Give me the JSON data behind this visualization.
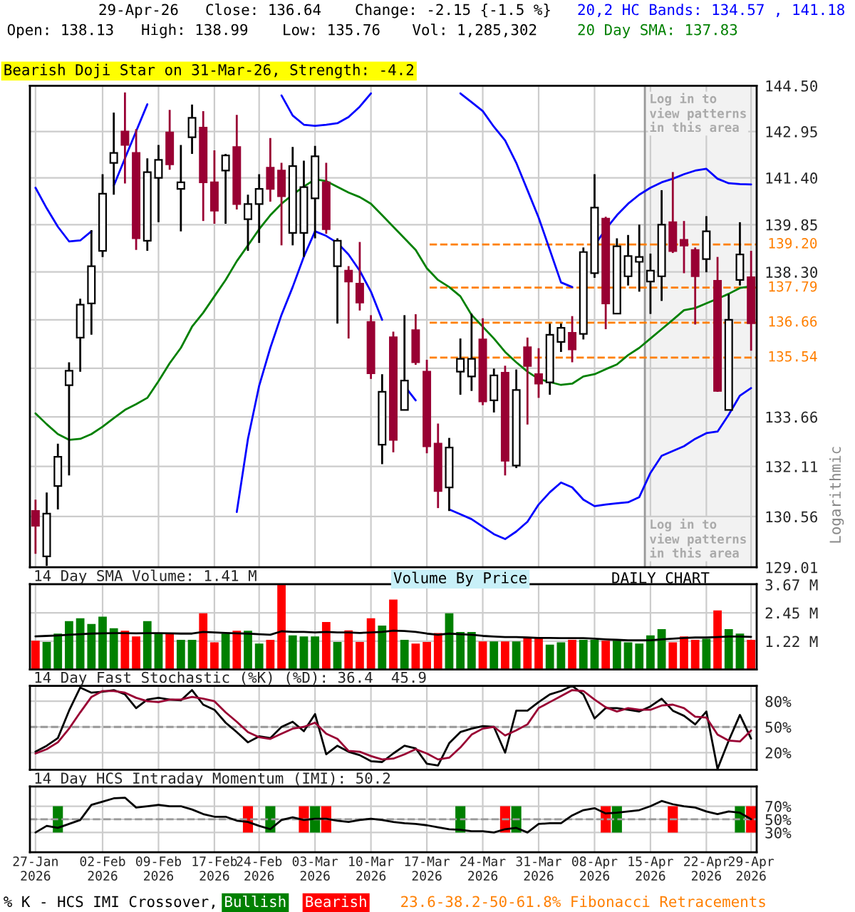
{
  "chart_data": [
    {
      "type": "candlestick",
      "categories": [
        "27-Jan\n2026",
        null,
        null,
        null,
        null,
        null,
        "02-Feb\n2026",
        null,
        null,
        null,
        null,
        "09-Feb\n2026",
        null,
        null,
        null,
        null,
        "17-Feb\n2026",
        null,
        null,
        null,
        "24-Feb\n2026",
        null,
        null,
        null,
        null,
        "03-Mar\n2026",
        null,
        null,
        null,
        null,
        "10-Mar\n2026",
        null,
        null,
        null,
        null,
        "17-Mar\n2026",
        null,
        null,
        null,
        null,
        "24-Mar\n2026",
        null,
        null,
        null,
        null,
        "31-Mar\n2026",
        null,
        null,
        null,
        null,
        "08-Apr\n2026",
        null,
        null,
        null,
        null,
        "15-Apr\n2026",
        null,
        null,
        null,
        null,
        "22-Apr\n2026",
        null,
        null,
        null,
        "29-Apr\n2026"
      ],
      "series": [
        {
          "type": "line",
          "name": "20,2 HC Bands: 134.57 , 141.18",
          "color": "#0000ff",
          "values": [
            141.07,
            140.39,
            139.78,
            139.3,
            139.33,
            139.63,
            null,
            141.14,
            142.05,
            142.96,
            143.87,
            null,
            null,
            null,
            null,
            null,
            null,
            null,
            null,
            null,
            null,
            null,
            144.17,
            143.49,
            143.18,
            143.14,
            143.18,
            143.23,
            143.44,
            143.79,
            144.24,
            null,
            null,
            null,
            null,
            null,
            null,
            null,
            144.24,
            143.94,
            143.64,
            143.11,
            142.65,
            141.9,
            140.99,
            140.08,
            139.02,
            137.96,
            137.81,
            null,
            139.17,
            139.7,
            140.16,
            140.54,
            140.84,
            141.07,
            141.25,
            141.37,
            141.52,
            141.64,
            141.7,
            141.37,
            141.22,
            141.19,
            141.18
          ]
        },
        {
          "type": "line",
          "color": "#0000ff",
          "values": [
            null,
            null,
            null,
            null,
            null,
            null,
            null,
            null,
            null,
            null,
            null,
            null,
            null,
            null,
            null,
            null,
            null,
            null,
            130.7,
            132.97,
            134.64,
            135.85,
            136.91,
            137.81,
            138.8,
            139.63,
            139.48,
            139.25,
            138.87,
            138.34,
            137.66,
            136.75,
            null,
            134.64,
            134.18,
            null,
            null,
            130.78,
            130.63,
            130.48,
            130.25,
            130.02,
            129.87,
            130.1,
            130.4,
            130.93,
            131.31,
            131.61,
            131.46,
            131.08,
            130.88,
            130.93,
            130.97,
            131.0,
            131.16,
            131.91,
            132.44,
            132.59,
            132.74,
            132.97,
            133.15,
            133.2,
            133.73,
            134.33,
            134.57
          ]
        },
        {
          "type": "line",
          "name": "20 Day SMA: 137.83",
          "color": "#008000",
          "values": [
            133.77,
            133.43,
            133.12,
            132.94,
            132.97,
            133.12,
            133.35,
            133.62,
            133.88,
            134.06,
            134.26,
            134.79,
            135.36,
            135.85,
            136.53,
            136.98,
            137.51,
            138.04,
            138.65,
            139.17,
            139.7,
            140.16,
            140.54,
            140.84,
            141.11,
            141.35,
            141.29,
            141.1,
            140.91,
            140.76,
            140.54,
            140.16,
            139.78,
            139.4,
            139.02,
            138.42,
            138.04,
            137.81,
            137.51,
            136.91,
            136.53,
            136.15,
            135.72,
            135.39,
            135.09,
            134.86,
            134.76,
            134.67,
            134.71,
            134.94,
            135.01,
            135.17,
            135.32,
            135.62,
            135.85,
            136.15,
            136.45,
            136.75,
            137.06,
            137.13,
            137.28,
            137.43,
            137.59,
            137.78,
            137.83
          ]
        },
        {
          "type": "candlestick",
          "colors": [
            "#990033",
            "#ffffff",
            "#ffffff",
            "#ffffff",
            "#ffffff",
            "#ffffff",
            "#ffffff",
            "#ffffff",
            "#990033",
            "#990033",
            "#ffffff",
            "#ffffff",
            "#990033",
            "#ffffff",
            "#ffffff",
            "#990033",
            "#990033",
            "#ffffff",
            "#990033",
            "#ffffff",
            "#ffffff",
            "#990033",
            "#990033",
            "#ffffff",
            "#ffffff",
            "#ffffff",
            "#990033",
            "#ffffff",
            "#990033",
            "#990033",
            "#990033",
            "#ffffff",
            "#990033",
            "#ffffff",
            "#990033",
            "#990033",
            "#990033",
            "#ffffff",
            "#ffffff",
            "#ffffff",
            "#990033",
            "#ffffff",
            "#990033",
            "#ffffff",
            "#990033",
            "#990033",
            "#ffffff",
            "#ffffff",
            "#990033",
            "#ffffff",
            "#ffffff",
            "#990033",
            "#ffffff",
            "#ffffff",
            "#ffffff",
            "#ffffff",
            "#ffffff",
            "#990033",
            "#990033",
            "#990033",
            "#ffffff",
            "#990033",
            "#ffffff",
            "#ffffff",
            "#990033"
          ],
          "ohlc": [
            [
              130.73,
              131.08,
              129.42,
              130.28
            ],
            [
              129.34,
              131.3,
              129.05,
              130.65
            ],
            [
              131.5,
              132.82,
              130.78,
              132.41
            ],
            [
              134.66,
              135.39,
              131.83,
              135.12
            ],
            [
              136.18,
              137.43,
              135.09,
              137.24
            ],
            [
              137.28,
              139.67,
              136.27,
              138.49
            ],
            [
              138.99,
              141.52,
              138.79,
              140.87
            ],
            [
              141.9,
              143.59,
              140.84,
              142.23
            ],
            [
              142.95,
              144.27,
              141.21,
              142.5
            ],
            [
              142.23,
              143.03,
              139.02,
              139.4
            ],
            [
              139.32,
              142.05,
              138.99,
              141.59
            ],
            [
              141.4,
              142.5,
              139.93,
              142.0
            ],
            [
              142.92,
              143.68,
              141.67,
              141.85
            ],
            [
              141.03,
              142.5,
              139.63,
              141.25
            ],
            [
              142.76,
              143.86,
              142.2,
              143.41
            ],
            [
              143.08,
              143.64,
              139.97,
              141.25
            ],
            [
              141.25,
              142.32,
              139.88,
              140.31
            ],
            [
              141.64,
              142.2,
              139.88,
              142.15
            ],
            [
              142.43,
              143.51,
              140.35,
              140.53
            ],
            [
              140.03,
              140.84,
              138.99,
              140.53
            ],
            [
              140.53,
              141.52,
              139.25,
              141.03
            ],
            [
              141.74,
              142.73,
              140.61,
              141.03
            ],
            [
              141.64,
              141.9,
              139.17,
              140.79
            ],
            [
              139.58,
              142.43,
              139.17,
              141.79
            ],
            [
              139.58,
              141.97,
              138.79,
              141.09
            ],
            [
              140.72,
              142.47,
              139.4,
              142.12
            ],
            [
              141.25,
              141.9,
              139.55,
              139.7
            ],
            [
              138.49,
              139.4,
              136.63,
              139.32
            ],
            [
              138.34,
              138.49,
              136.15,
              137.99
            ],
            [
              137.92,
              139.28,
              137.05,
              137.31
            ],
            [
              136.68,
              136.9,
              134.86,
              135.04
            ],
            [
              132.79,
              135.01,
              132.18,
              134.45
            ],
            [
              136.19,
              136.37,
              132.55,
              132.94
            ],
            [
              133.88,
              136.9,
              133.88,
              134.81
            ],
            [
              136.42,
              136.93,
              135.31,
              135.39
            ],
            [
              135.09,
              135.47,
              132.52,
              132.74
            ],
            [
              132.82,
              133.45,
              130.82,
              131.35
            ],
            [
              131.46,
              133.0,
              130.73,
              132.7
            ],
            [
              135.09,
              136.15,
              134.36,
              135.5
            ],
            [
              134.94,
              136.95,
              134.48,
              135.5
            ],
            [
              136.12,
              136.8,
              134.03,
              134.15
            ],
            [
              134.18,
              135.19,
              133.8,
              134.97
            ],
            [
              135.06,
              135.28,
              131.83,
              132.29
            ],
            [
              132.14,
              135.16,
              132.06,
              134.51
            ],
            [
              135.87,
              136.18,
              133.42,
              135.27
            ],
            [
              135.01,
              135.84,
              134.26,
              134.71
            ],
            [
              134.75,
              136.63,
              134.36,
              136.27
            ],
            [
              136.04,
              136.63,
              135.72,
              136.49
            ],
            [
              136.33,
              136.87,
              135.39,
              135.8
            ],
            [
              136.3,
              139.1,
              136.12,
              138.95
            ],
            [
              138.26,
              141.52,
              138.11,
              140.41
            ],
            [
              140.05,
              140.11,
              136.45,
              137.28
            ],
            [
              136.95,
              139.4,
              136.94,
              139.14
            ],
            [
              138.16,
              139.51,
              137.86,
              138.82
            ],
            [
              138.63,
              139.85,
              137.66,
              138.79
            ],
            [
              137.99,
              138.9,
              136.94,
              138.34
            ],
            [
              138.16,
              140.99,
              137.36,
              139.85
            ],
            [
              139.93,
              141.59,
              138.92,
              138.98
            ],
            [
              139.35,
              139.97,
              138.26,
              139.16
            ],
            [
              139.02,
              139.1,
              136.6,
              138.16
            ],
            [
              138.72,
              140.13,
              138.29,
              139.63
            ],
            [
              138.01,
              138.79,
              134.45,
              134.48
            ],
            [
              133.88,
              137.58,
              133.88,
              136.75
            ],
            [
              138.04,
              139.93,
              137.86,
              138.87
            ],
            [
              138.13,
              138.99,
              135.76,
              136.64
            ]
          ]
        }
      ],
      "ylim": [
        129.01,
        144.5
      ],
      "yticks": [
        {
          "value": 129.01,
          "label": "129.01"
        },
        {
          "value": 130.56,
          "label": "130.56"
        },
        {
          "value": 132.11,
          "label": "132.11"
        },
        {
          "value": 133.66,
          "label": "133.66"
        },
        {
          "value": 135.2,
          "label": null
        },
        {
          "value": 136.75,
          "label": null
        },
        {
          "value": 138.3,
          "label": "138.30"
        },
        {
          "value": 139.85,
          "label": "139.85"
        },
        {
          "value": 141.4,
          "label": "141.40"
        },
        {
          "value": 142.95,
          "label": "142.95"
        },
        {
          "value": 144.5,
          "label": "144.50"
        }
      ],
      "log": true,
      "grid": true,
      "tick_labels": "y",
      "legend": "top right",
      "ylabel": "Logarithmic",
      "ref_lines": [
        {
          "axis": "y",
          "value": 139.2,
          "label": "139.20",
          "color": "#ff7f00",
          "line_style": "dashed"
        },
        {
          "axis": "y",
          "value": 137.79,
          "label": "137.79",
          "color": "#ff7f00",
          "line_style": "dashed"
        },
        {
          "axis": "y",
          "value": 136.66,
          "label": "136.66",
          "color": "#ff7f00",
          "line_style": "dashed"
        },
        {
          "axis": "y",
          "value": 135.54,
          "label": "135.54",
          "color": "#ff7f00",
          "line_style": "dashed"
        }
      ],
      "bands": [
        {
          "axis": "x",
          "from": "15-Apr\n2026",
          "to": "29-Apr\n2026",
          "label": "Log in to\nview patterns\nin this area",
          "color": "#f2f2f2"
        }
      ],
      "annotations": [
        "29-Apr-26",
        "Close: 136.64",
        "Change: -2.15 {-1.5 %}",
        "Open: 138.13",
        "High: 138.99",
        "Low: 135.76",
        "Vol: 1,285,302",
        "Bearish Doji Star on 31-Mar-26, Strength: -4.2"
      ]
    },
    {
      "type": "bar",
      "title": "14 Day SMA Volume: 1.41 M",
      "categories": [
        "27-Jan\n2026",
        null,
        null,
        null,
        null,
        null,
        "02-Feb\n2026",
        null,
        null,
        null,
        null,
        "09-Feb\n2026",
        null,
        null,
        null,
        null,
        "17-Feb\n2026",
        null,
        null,
        null,
        "24-Feb\n2026",
        null,
        null,
        null,
        null,
        "03-Mar\n2026",
        null,
        null,
        null,
        null,
        "10-Mar\n2026",
        null,
        null,
        null,
        null,
        "17-Mar\n2026",
        null,
        null,
        null,
        null,
        "24-Mar\n2026",
        null,
        null,
        null,
        null,
        "31-Mar\n2026",
        null,
        null,
        null,
        null,
        "08-Apr\n2026",
        null,
        null,
        null,
        null,
        "15-Apr\n2026",
        null,
        null,
        null,
        null,
        "22-Apr\n2026",
        null,
        null,
        null,
        "29-Apr\n2026"
      ],
      "series": [
        {
          "type": "bar",
          "colors": [
            "#ff0000",
            "#008000",
            "#008000",
            "#008000",
            "#008000",
            "#008000",
            "#008000",
            "#008000",
            "#ff0000",
            "#ff0000",
            "#008000",
            "#008000",
            "#ff0000",
            "#008000",
            "#008000",
            "#ff0000",
            "#ff0000",
            "#008000",
            "#ff0000",
            "#008000",
            "#008000",
            "#ff0000",
            "#ff0000",
            "#008000",
            "#008000",
            "#008000",
            "#ff0000",
            "#008000",
            "#ff0000",
            "#ff0000",
            "#ff0000",
            "#008000",
            "#ff0000",
            "#008000",
            "#ff0000",
            "#ff0000",
            "#ff0000",
            "#008000",
            "#008000",
            "#008000",
            "#ff0000",
            "#008000",
            "#ff0000",
            "#008000",
            "#ff0000",
            "#ff0000",
            "#008000",
            "#008000",
            "#ff0000",
            "#008000",
            "#008000",
            "#ff0000",
            "#008000",
            "#008000",
            "#008000",
            "#008000",
            "#008000",
            "#ff0000",
            "#ff0000",
            "#ff0000",
            "#008000",
            "#ff0000",
            "#008000",
            "#008000",
            "#ff0000"
          ],
          "values": [
            1.24,
            1.19,
            1.55,
            2.09,
            2.21,
            1.97,
            2.28,
            1.78,
            1.67,
            1.43,
            2.09,
            1.55,
            1.59,
            1.28,
            1.28,
            2.43,
            1.17,
            1.55,
            1.67,
            1.67,
            1.12,
            1.28,
            3.66,
            1.47,
            1.43,
            1.43,
            2.05,
            1.19,
            1.69,
            1.19,
            2.21,
            1.9,
            3.02,
            1.28,
            1.12,
            1.19,
            1.57,
            2.43,
            1.62,
            1.62,
            1.21,
            1.21,
            1.21,
            1.21,
            1.4,
            1.36,
            1.07,
            1.17,
            1.28,
            1.28,
            1.28,
            1.24,
            1.24,
            1.17,
            1.12,
            1.47,
            1.74,
            1.17,
            1.43,
            1.28,
            1.33,
            2.55,
            1.74,
            1.55,
            1.28
          ]
        },
        {
          "type": "line",
          "color": "#000000",
          "values": [
            1.43,
            1.45,
            1.47,
            1.5,
            1.52,
            1.55,
            1.56,
            1.57,
            1.57,
            1.56,
            1.57,
            1.57,
            1.56,
            1.55,
            1.55,
            1.62,
            1.6,
            1.58,
            1.56,
            1.55,
            1.52,
            1.5,
            1.65,
            1.62,
            1.62,
            1.6,
            1.62,
            1.6,
            1.6,
            1.58,
            1.6,
            1.62,
            1.68,
            1.66,
            1.62,
            1.55,
            1.5,
            1.55,
            1.52,
            1.5,
            1.45,
            1.42,
            1.4,
            1.4,
            1.38,
            1.36,
            1.36,
            1.35,
            1.35,
            1.35,
            1.33,
            1.3,
            1.28,
            1.26,
            1.26,
            1.26,
            1.3,
            1.33,
            1.36,
            1.38,
            1.38,
            1.4,
            1.42,
            1.42,
            1.41
          ]
        }
      ],
      "ylim": [
        0,
        3.69
      ],
      "yticks": [
        {
          "value": 1.22,
          "label": "1.22 M"
        },
        {
          "value": 2.45,
          "label": "2.45 M"
        },
        {
          "value": 3.67,
          "label": "3.67 M"
        }
      ],
      "grid": true,
      "tick_labels": "y",
      "annotations": [
        "Volume By Price",
        "DAILY CHART"
      ]
    },
    {
      "type": "line",
      "title": "14 Day Fast Stochastic (%K) (%D): 36.4  45.9",
      "categories": [
        "27-Jan\n2026",
        null,
        null,
        null,
        null,
        null,
        "02-Feb\n2026",
        null,
        null,
        null,
        null,
        "09-Feb\n2026",
        null,
        null,
        null,
        null,
        "17-Feb\n2026",
        null,
        null,
        null,
        "24-Feb\n2026",
        null,
        null,
        null,
        null,
        "03-Mar\n2026",
        null,
        null,
        null,
        null,
        "10-Mar\n2026",
        null,
        null,
        null,
        null,
        "17-Mar\n2026",
        null,
        null,
        null,
        null,
        "24-Mar\n2026",
        null,
        null,
        null,
        null,
        "31-Mar\n2026",
        null,
        null,
        null,
        null,
        "08-Apr\n2026",
        null,
        null,
        null,
        null,
        "15-Apr\n2026",
        null,
        null,
        null,
        null,
        "22-Apr\n2026",
        null,
        null,
        null,
        "29-Apr\n2026"
      ],
      "series": [
        {
          "color": "#000000",
          "values": [
            21,
            28,
            37,
            69,
            96,
            90,
            91,
            93,
            88,
            72,
            82,
            84,
            82,
            81,
            93,
            76,
            70,
            55,
            44,
            32,
            39,
            37,
            50,
            56,
            45,
            65,
            18,
            28,
            21,
            17,
            10,
            9,
            19,
            28,
            25,
            7,
            5,
            31,
            44,
            48,
            51,
            50,
            20,
            69,
            69,
            79,
            88,
            92,
            98,
            88,
            60,
            72,
            72,
            70,
            68,
            74,
            83,
            69,
            63,
            53,
            68,
            1,
            34,
            64,
            36.4
          ]
        },
        {
          "color": "#990033",
          "values": [
            19,
            24,
            32,
            48,
            67,
            85,
            92,
            92,
            90,
            84,
            80,
            79,
            82,
            82,
            85,
            83,
            80,
            67,
            56,
            44,
            38,
            36,
            42,
            48,
            50,
            55,
            42,
            36,
            22,
            21,
            16,
            12,
            13,
            18,
            24,
            19,
            12,
            14,
            26,
            41,
            48,
            50,
            40,
            46,
            53,
            72,
            79,
            86,
            93,
            92,
            82,
            73,
            68,
            72,
            70,
            70,
            75,
            76,
            72,
            62,
            61,
            41,
            34,
            33,
            45.9
          ]
        }
      ],
      "ylim": [
        0,
        98
      ],
      "yticks": [
        {
          "value": 20,
          "label": "20%"
        },
        {
          "value": 50,
          "label": "50%"
        },
        {
          "value": 80,
          "label": "80%"
        }
      ],
      "grid": true,
      "tick_labels": "y",
      "ref_lines": [
        {
          "axis": "y",
          "value": 50,
          "color": "#999999",
          "line_style": "dashed"
        }
      ]
    },
    {
      "type": "line",
      "title": "14 Day HCS Intraday Momentum (IMI): 50.2",
      "categories": [
        "27-Jan\n2026",
        null,
        null,
        null,
        null,
        null,
        "02-Feb\n2026",
        null,
        null,
        null,
        null,
        "09-Feb\n2026",
        null,
        null,
        null,
        null,
        "17-Feb\n2026",
        null,
        null,
        null,
        "24-Feb\n2026",
        null,
        null,
        null,
        null,
        "03-Mar\n2026",
        null,
        null,
        null,
        null,
        "10-Mar\n2026",
        null,
        null,
        null,
        null,
        "17-Mar\n2026",
        null,
        null,
        null,
        null,
        "24-Mar\n2026",
        null,
        null,
        null,
        null,
        "31-Mar\n2026",
        null,
        null,
        null,
        null,
        "08-Apr\n2026",
        null,
        null,
        null,
        null,
        "15-Apr\n2026",
        null,
        null,
        null,
        null,
        "22-Apr\n2026",
        null,
        null,
        null,
        "29-Apr\n2026"
      ],
      "series": [
        {
          "type": "bar",
          "name": "Bullish",
          "color": "#008000",
          "values": [
            null,
            null,
            40,
            null,
            null,
            null,
            null,
            null,
            null,
            null,
            null,
            null,
            null,
            null,
            null,
            null,
            null,
            null,
            null,
            null,
            null,
            40,
            null,
            null,
            null,
            40,
            null,
            null,
            null,
            null,
            null,
            null,
            null,
            null,
            null,
            null,
            null,
            null,
            40,
            null,
            null,
            null,
            null,
            40,
            null,
            null,
            null,
            null,
            null,
            null,
            null,
            null,
            40,
            null,
            null,
            null,
            null,
            null,
            null,
            null,
            null,
            null,
            null,
            40,
            null
          ],
          "base": [
            null,
            null,
            30,
            null,
            null,
            null,
            null,
            null,
            null,
            null,
            null,
            null,
            null,
            null,
            null,
            null,
            null,
            null,
            null,
            null,
            null,
            30,
            null,
            null,
            null,
            30,
            null,
            null,
            null,
            null,
            null,
            null,
            null,
            null,
            null,
            null,
            null,
            null,
            30,
            null,
            null,
            null,
            null,
            30,
            null,
            null,
            null,
            null,
            null,
            null,
            null,
            null,
            30,
            null,
            null,
            null,
            null,
            null,
            null,
            null,
            null,
            null,
            null,
            30,
            null
          ]
        },
        {
          "type": "bar",
          "name": "Bearish",
          "color": "#ff0000",
          "values": [
            null,
            null,
            null,
            null,
            null,
            null,
            null,
            null,
            null,
            null,
            null,
            null,
            null,
            null,
            null,
            null,
            null,
            null,
            null,
            40,
            null,
            null,
            null,
            null,
            40,
            null,
            40,
            null,
            null,
            null,
            null,
            null,
            null,
            null,
            null,
            null,
            null,
            null,
            null,
            null,
            null,
            null,
            40,
            null,
            null,
            null,
            null,
            null,
            null,
            null,
            null,
            40,
            null,
            null,
            null,
            null,
            null,
            40,
            null,
            null,
            null,
            null,
            null,
            null,
            40
          ],
          "base": [
            null,
            null,
            null,
            null,
            null,
            null,
            null,
            null,
            null,
            null,
            null,
            null,
            null,
            null,
            null,
            null,
            null,
            null,
            null,
            30,
            null,
            null,
            null,
            null,
            30,
            null,
            30,
            null,
            null,
            null,
            null,
            null,
            null,
            null,
            null,
            null,
            null,
            null,
            null,
            null,
            null,
            null,
            30,
            null,
            null,
            null,
            null,
            null,
            null,
            null,
            null,
            30,
            null,
            null,
            null,
            null,
            null,
            30,
            null,
            null,
            null,
            null,
            null,
            null,
            30
          ]
        },
        {
          "type": "line",
          "color": "#000000",
          "values": [
            30,
            40,
            37,
            43,
            49,
            72,
            77,
            82,
            83,
            68,
            70,
            72,
            70,
            70,
            65,
            58,
            54,
            54,
            48,
            46,
            40,
            35,
            49,
            53,
            49,
            51,
            51,
            48,
            46,
            49,
            51,
            49,
            46,
            44,
            43,
            41,
            38,
            35,
            34,
            32,
            32,
            30,
            35,
            37,
            30,
            43,
            44,
            44,
            56,
            64,
            67,
            59,
            60,
            62,
            64,
            70,
            78,
            73,
            70,
            68,
            62,
            58,
            62,
            60,
            50.2
          ]
        }
      ],
      "ylim": [
        0,
        100
      ],
      "yticks": [
        {
          "value": 30,
          "label": "30%"
        },
        {
          "value": 50,
          "label": "50%"
        },
        {
          "value": 70,
          "label": "70%"
        }
      ],
      "grid": true,
      "legend": "bottom",
      "ref_lines": [
        {
          "axis": "y",
          "value": 50,
          "color": "#999999",
          "line_style": "dashed"
        }
      ],
      "annotations": [
        "% K - HCS IMI Crossover,",
        "23.6-38.2-50-61.8% Fibonacci Retracements"
      ]
    }
  ]
}
